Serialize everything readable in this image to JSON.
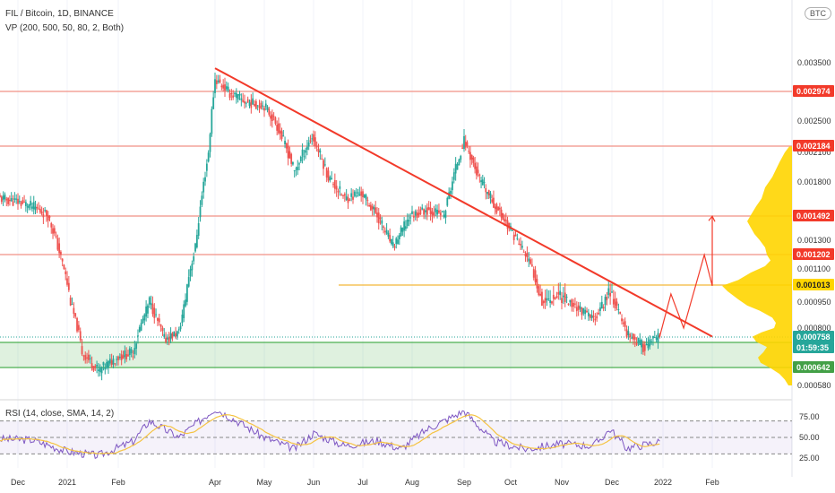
{
  "header": {
    "title": "FIL / Bitcoin, 1D, BINANCE",
    "indicator": "VP (200, 500, 50, 80, 2, Both)",
    "currency_badge": "BTC"
  },
  "rsi_panel": {
    "label": "RSI (14, close, SMA, 14, 2)",
    "ticks": [
      "75.00",
      "50.00",
      "25.00"
    ]
  },
  "colors": {
    "up": "#26a69a",
    "down": "#ef5350",
    "trendline": "#f23a2a",
    "resistance": "#f4a39a",
    "poc": "#f6c358",
    "volume_profile": "#ffd500",
    "support_zone": "#4caf50",
    "rsi_line": "#7e57c2",
    "rsi_ma": "#f5c342"
  },
  "chart_data": [
    {
      "type": "candlestick",
      "title": "FIL / Bitcoin, 1D, BINANCE",
      "x_ticks": [
        "Dec",
        "2021",
        "Feb",
        "Apr",
        "May",
        "Jun",
        "Jul",
        "Aug",
        "Sep",
        "Oct",
        "Nov",
        "Dec",
        "2022",
        "Feb"
      ],
      "y_ticks": [
        "0.003500",
        "0.002500",
        "0.002100",
        "0.001800",
        "0.001300",
        "0.001100",
        "0.000950",
        "0.000800",
        "0.000580"
      ],
      "price_labels": [
        {
          "value": "0.002974",
          "kind": "resistance"
        },
        {
          "value": "0.002184",
          "kind": "resistance"
        },
        {
          "value": "0.001492",
          "kind": "resistance"
        },
        {
          "value": "0.001202",
          "kind": "resistance"
        },
        {
          "value": "0.001013",
          "kind": "poc"
        },
        {
          "value": "0.000758",
          "kind": "last"
        },
        {
          "value": "01:59:35",
          "kind": "countdown"
        },
        {
          "value": "0.000642",
          "kind": "support"
        }
      ],
      "series": [
        {
          "points": [
            [
              "2020-11-20",
              0.00165
            ],
            [
              "2020-12-01",
              0.00162
            ],
            [
              "2020-12-10",
              0.00158
            ],
            [
              "2020-12-20",
              0.0015
            ],
            [
              "2021-01-01",
              0.00102
            ],
            [
              "2021-01-10",
              0.0007
            ],
            [
              "2021-01-20",
              0.00063
            ],
            [
              "2021-01-31",
              0.00068
            ],
            [
              "2021-02-10",
              0.0007
            ],
            [
              "2021-02-20",
              0.00095
            ],
            [
              "2021-03-01",
              0.00075
            ],
            [
              "2021-03-10",
              0.00078
            ],
            [
              "2021-03-20",
              0.00125
            ],
            [
              "2021-03-28",
              0.0021
            ],
            [
              "2021-04-01",
              0.0032
            ],
            [
              "2021-04-10",
              0.00295
            ],
            [
              "2021-04-20",
              0.0028
            ],
            [
              "2021-05-01",
              0.00275
            ],
            [
              "2021-05-10",
              0.0024
            ],
            [
              "2021-05-20",
              0.0019
            ],
            [
              "2021-05-31",
              0.0023
            ],
            [
              "2021-06-10",
              0.00185
            ],
            [
              "2021-06-20",
              0.00165
            ],
            [
              "2021-06-30",
              0.0017
            ],
            [
              "2021-07-10",
              0.0015
            ],
            [
              "2021-07-20",
              0.00125
            ],
            [
              "2021-07-31",
              0.0015
            ],
            [
              "2021-08-10",
              0.00155
            ],
            [
              "2021-08-20",
              0.0015
            ],
            [
              "2021-09-01",
              0.00225
            ],
            [
              "2021-09-10",
              0.00185
            ],
            [
              "2021-09-20",
              0.0016
            ],
            [
              "2021-09-30",
              0.0014
            ],
            [
              "2021-10-10",
              0.0012
            ],
            [
              "2021-10-20",
              0.00095
            ],
            [
              "2021-10-31",
              0.00098
            ],
            [
              "2021-11-10",
              0.00092
            ],
            [
              "2021-11-20",
              0.00085
            ],
            [
              "2021-11-30",
              0.001
            ],
            [
              "2021-12-10",
              0.00078
            ],
            [
              "2021-12-20",
              0.00072
            ],
            [
              "2021-12-30",
              0.000758
            ]
          ]
        }
      ]
    },
    {
      "type": "line",
      "title": "RSI (14, close, SMA, 14, 2)",
      "ylim": [
        25,
        75
      ],
      "y_ticks": [
        "75.00",
        "50.00",
        "25.00"
      ],
      "series": [
        {
          "points": [
            [
              "2020-11-20",
              48
            ],
            [
              "2020-12-10",
              47
            ],
            [
              "2021-01-01",
              33
            ],
            [
              "2021-01-20",
              28
            ],
            [
              "2021-02-10",
              45
            ],
            [
              "2021-02-20",
              70
            ],
            [
              "2021-03-10",
              50
            ],
            [
              "2021-04-01",
              85
            ],
            [
              "2021-04-10",
              75
            ],
            [
              "2021-05-01",
              50
            ],
            [
              "2021-05-20",
              36
            ],
            [
              "2021-06-01",
              55
            ],
            [
              "2021-06-20",
              40
            ],
            [
              "2021-07-10",
              46
            ],
            [
              "2021-07-25",
              36
            ],
            [
              "2021-08-10",
              60
            ],
            [
              "2021-09-01",
              82
            ],
            [
              "2021-09-20",
              45
            ],
            [
              "2021-10-10",
              36
            ],
            [
              "2021-10-31",
              42
            ],
            [
              "2021-11-20",
              40
            ],
            [
              "2021-11-30",
              60
            ],
            [
              "2021-12-10",
              37
            ],
            [
              "2021-12-30",
              45
            ]
          ]
        }
      ]
    }
  ]
}
